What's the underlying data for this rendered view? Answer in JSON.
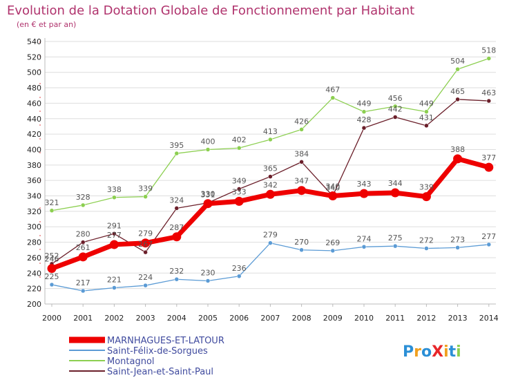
{
  "chart_data": {
    "type": "line",
    "title": "Evolution de la Dotation Globale de Fonctionnement par Habitant",
    "subtitle": "(en € et par an)",
    "xlabel": "",
    "ylabel": "",
    "categories": [
      "2000",
      "2001",
      "2002",
      "2003",
      "2004",
      "2005",
      "2006",
      "2007",
      "2008",
      "2009",
      "2010",
      "2011",
      "2012",
      "2013",
      "2014"
    ],
    "ylim": [
      200,
      540
    ],
    "yticks": [
      200,
      220,
      240,
      260,
      280,
      300,
      320,
      340,
      360,
      380,
      400,
      420,
      440,
      460,
      480,
      500,
      520,
      540
    ],
    "grid": "horizontal",
    "legend_position": "bottom-left",
    "series": [
      {
        "name": "Montagnol",
        "color": "#8ccf50",
        "values": [
          321,
          328,
          338,
          339,
          395,
          400,
          402,
          413,
          426,
          467,
          449,
          456,
          449,
          504,
          518
        ]
      },
      {
        "name": "Saint-Jean-et-Saint-Paul",
        "color": "#6b1f2a",
        "values": [
          252,
          280,
          291,
          267,
          324,
          331,
          349,
          365,
          384,
          340,
          428,
          442,
          431,
          465,
          463
        ]
      },
      {
        "name": "Saint-Félix-de-Sorgues",
        "color": "#5b9bd5",
        "values": [
          225,
          217,
          221,
          224,
          232,
          230,
          236,
          279,
          270,
          269,
          274,
          275,
          272,
          273,
          277
        ]
      },
      {
        "name": "MARNHAGUES-ET-LATOUR",
        "color": "#ee0000",
        "values": [
          246,
          261,
          277,
          279,
          287,
          330,
          333,
          342,
          347,
          340,
          343,
          344,
          339,
          388,
          377
        ]
      }
    ],
    "legend_order": [
      "MARNHAGUES-ET-LATOUR",
      "Saint-Félix-de-Sorgues",
      "Montagnol",
      "Saint-Jean-et-Saint-Paul"
    ]
  },
  "logo": {
    "text": "ProXiti",
    "colors": [
      "#2b8fd6",
      "#f0a020",
      "#2b8fd6",
      "#e8262a",
      "#f0a020",
      "#2b8fd6",
      "#8ccf50"
    ]
  }
}
